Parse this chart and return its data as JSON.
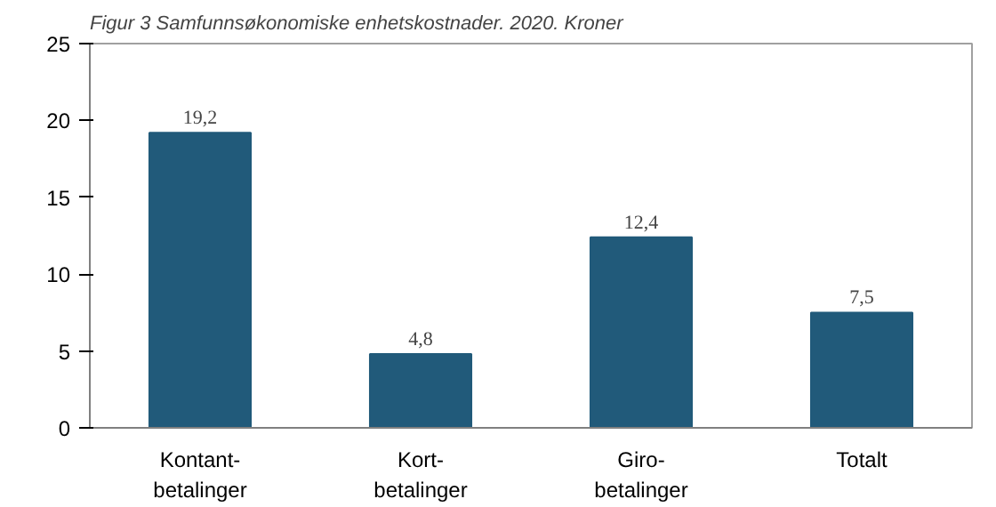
{
  "chart_data": {
    "type": "bar",
    "title": "Figur 3 Samfunnsøkonomiske enhetskostnader. 2020. Kroner",
    "categories": [
      "Kontant-\nbetalinger",
      "Kort-\nbetalinger",
      "Giro-\nbetalinger",
      "Totalt"
    ],
    "values": [
      19.2,
      4.8,
      12.4,
      7.5
    ],
    "value_labels": [
      "19,2",
      "4,8",
      "12,4",
      "7,5"
    ],
    "color": "#215a7a",
    "ylim": [
      0,
      25
    ],
    "yticks": [
      0,
      5,
      10,
      15,
      20,
      25
    ],
    "grid": false
  }
}
